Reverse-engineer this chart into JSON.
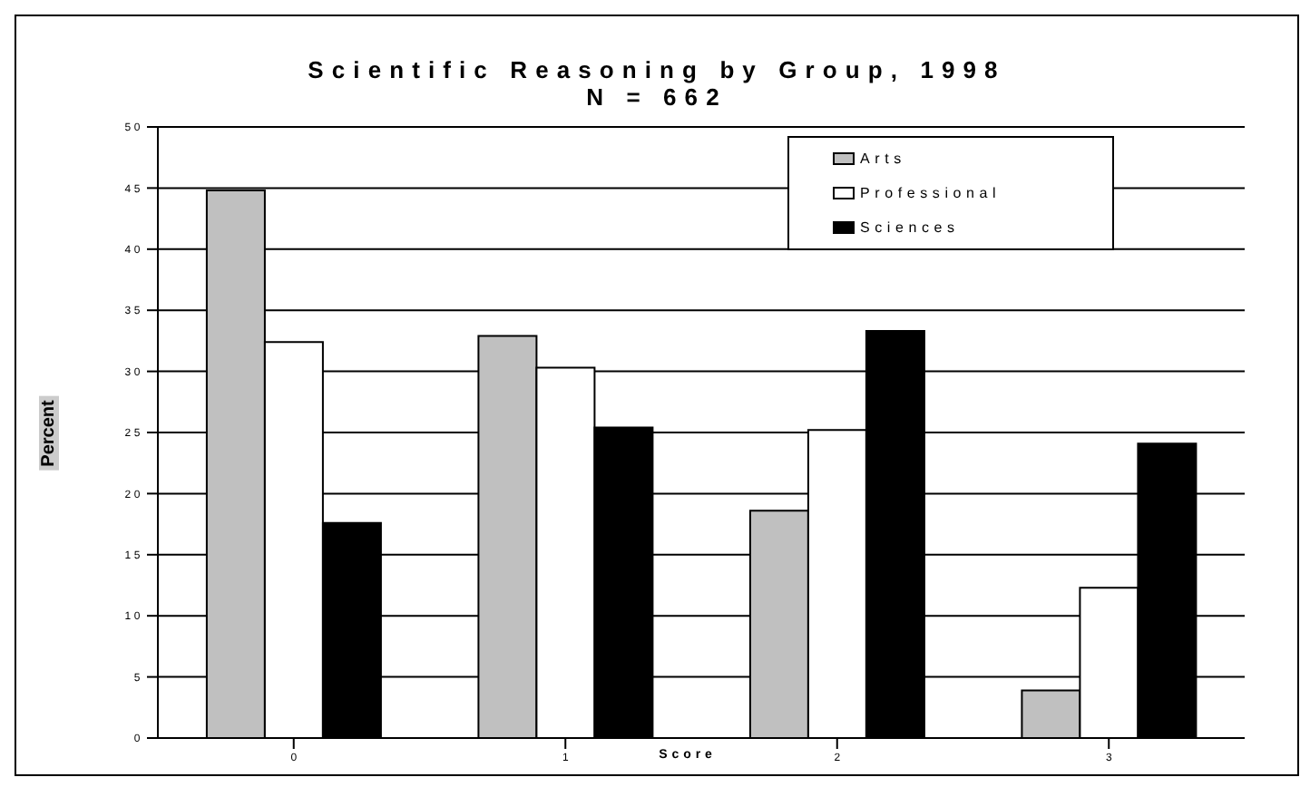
{
  "chart_data": {
    "type": "bar",
    "title": "Scientific Reasoning by Group, 1998",
    "subtitle": "N = 662",
    "xlabel": "Score",
    "ylabel": "Percent",
    "categories": [
      "0",
      "1",
      "2",
      "3"
    ],
    "series": [
      {
        "name": "Arts",
        "color": "#c0c0c0",
        "values": [
          44.8,
          32.9,
          18.6,
          3.9
        ]
      },
      {
        "name": "Professional",
        "color": "#ffffff",
        "values": [
          32.4,
          30.3,
          25.2,
          12.3
        ]
      },
      {
        "name": "Sciences",
        "color": "#000000",
        "values": [
          17.6,
          25.4,
          33.3,
          24.1
        ]
      }
    ],
    "ylim": [
      0,
      50
    ],
    "yticks": [
      0,
      5,
      10,
      15,
      20,
      25,
      30,
      35,
      40,
      45,
      50
    ],
    "grid": "y",
    "legend": "top right"
  }
}
